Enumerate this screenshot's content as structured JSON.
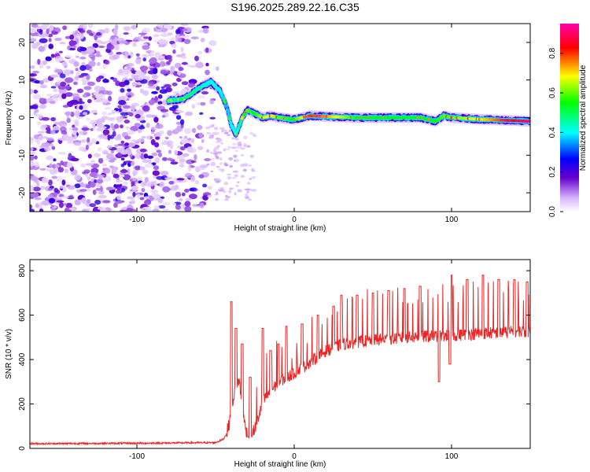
{
  "title": "S196.2025.289.22.16.C35",
  "chart_data": [
    {
      "type": "heatmap",
      "xlabel": "Height of straight line (km)",
      "ylabel": "Frequency (Hz)",
      "xlim": [
        -168,
        150
      ],
      "ylim": [
        -25,
        25
      ],
      "xticks": [
        -100,
        0,
        100
      ],
      "xtick_labels": [
        "-100",
        "0",
        "100"
      ],
      "yticks": [
        -20,
        -10,
        0,
        10,
        20
      ],
      "ytick_labels": [
        "-20",
        "-10",
        "0",
        "10",
        "20"
      ],
      "colorbar": {
        "label": "Normalized spectral amplitude",
        "range": [
          0,
          0.95
        ],
        "ticks": [
          0.0,
          0.2,
          0.4,
          0.6,
          0.8
        ],
        "tick_labels": [
          "0.0",
          "0.2",
          "0.4",
          "0.6",
          "0.8"
        ],
        "colors": [
          "#ffffff",
          "#6600cc",
          "#0000ff",
          "#00ffff",
          "#00ff00",
          "#ffff00",
          "#ff0000",
          "#ff00aa"
        ]
      },
      "ridge": {
        "x": [
          -80,
          -70,
          -60,
          -53,
          -47,
          -43,
          -40,
          -37,
          -33,
          -30,
          -25,
          -20,
          -15,
          -10,
          0,
          10,
          20,
          40,
          60,
          80,
          90,
          95,
          100,
          120,
          140,
          150
        ],
        "y": [
          4.5,
          5,
          8,
          9.5,
          7,
          3,
          -2,
          -4.5,
          0,
          2,
          1,
          0,
          0.5,
          0,
          -0.5,
          0.5,
          0.3,
          0,
          0,
          0,
          -1,
          0.5,
          0,
          -0.5,
          -0.8,
          -1
        ],
        "amplitude": [
          0.45,
          0.5,
          0.45,
          0.4,
          0.4,
          0.35,
          0.4,
          0.4,
          0.5,
          0.6,
          0.55,
          0.65,
          0.7,
          0.6,
          0.55,
          0.8,
          0.75,
          0.55,
          0.55,
          0.55,
          0.55,
          0.6,
          0.6,
          0.7,
          0.85,
          0.9
        ]
      },
      "noise_region_x": [
        -168,
        -55
      ]
    },
    {
      "type": "line",
      "xlabel": "Height of straight line (km)",
      "ylabel": "SNR (10 * v/v)",
      "xlim": [
        -168,
        150
      ],
      "ylim": [
        0,
        850
      ],
      "xticks": [
        -100,
        0,
        100
      ],
      "xtick_labels": [
        "-100",
        "0",
        "100"
      ],
      "yticks": [
        0,
        200,
        400,
        600,
        800
      ],
      "ytick_labels": [
        "0",
        "200",
        "400",
        "600",
        "800"
      ],
      "series": [
        {
          "name": "SNR",
          "color": "#ee2222",
          "baseline": {
            "x": [
              -168,
              -100,
              -50,
              -45,
              -42,
              -40,
              -38,
              -35,
              -32,
              -30,
              -28,
              -25,
              -22,
              -20,
              -15,
              -10,
              -5,
              0,
              10,
              20,
              30,
              50,
              80,
              100,
              120,
              150
            ],
            "y": [
              20,
              22,
              25,
              40,
              80,
              150,
              250,
              300,
              120,
              60,
              40,
              80,
              150,
              200,
              250,
              290,
              310,
              330,
              380,
              430,
              460,
              480,
              495,
              500,
              510,
              520
            ]
          },
          "spikes": [
            {
              "x": -40,
              "y": 660
            },
            {
              "x": -37,
              "y": 540
            },
            {
              "x": -33,
              "y": 470
            },
            {
              "x": -28,
              "y": 320
            },
            {
              "x": -20,
              "y": 540
            },
            {
              "x": -15,
              "y": 440
            },
            {
              "x": -10,
              "y": 470
            },
            {
              "x": -5,
              "y": 550
            },
            {
              "x": 5,
              "y": 560
            },
            {
              "x": 15,
              "y": 600
            },
            {
              "x": 25,
              "y": 640
            },
            {
              "x": 30,
              "y": 690
            },
            {
              "x": 40,
              "y": 690
            },
            {
              "x": 50,
              "y": 700
            },
            {
              "x": 60,
              "y": 710
            },
            {
              "x": 70,
              "y": 720
            },
            {
              "x": 80,
              "y": 730
            },
            {
              "x": 92,
              "y": 845
            },
            {
              "x": 100,
              "y": 780
            },
            {
              "x": 110,
              "y": 760
            },
            {
              "x": 120,
              "y": 780
            },
            {
              "x": 130,
              "y": 760
            },
            {
              "x": 140,
              "y": 760
            },
            {
              "x": 148,
              "y": 750
            }
          ],
          "dips": [
            {
              "x": 92,
              "y": 300
            },
            {
              "x": 99,
              "y": 380
            }
          ]
        }
      ]
    }
  ]
}
